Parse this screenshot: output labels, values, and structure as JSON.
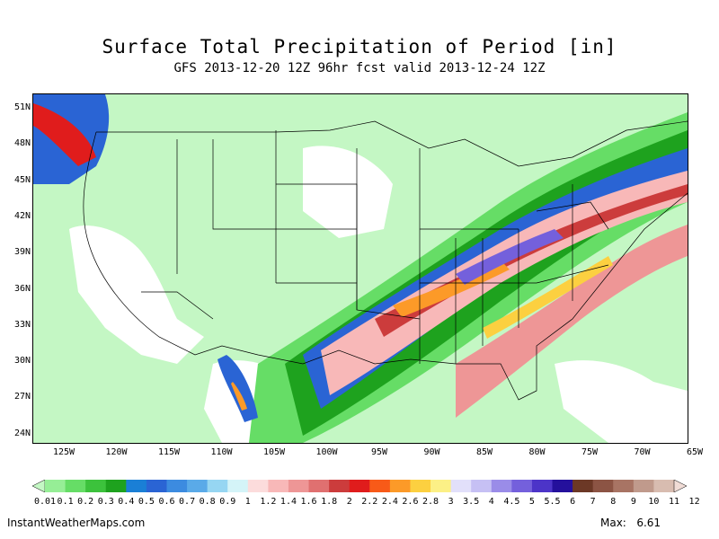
{
  "title": "Surface Total Precipitation of Period [in]",
  "subtitle": "GFS 2013-12-20 12Z 96hr fcst valid 2013-12-24 12Z",
  "lat_labels": [
    "51N",
    "48N",
    "45N",
    "42N",
    "39N",
    "36N",
    "33N",
    "30N",
    "27N",
    "24N"
  ],
  "lon_labels": [
    "125W",
    "120W",
    "115W",
    "110W",
    "105W",
    "100W",
    "95W",
    "90W",
    "85W",
    "80W",
    "75W",
    "70W",
    "65W"
  ],
  "colorbar": {
    "labels": [
      "0.01",
      "0.1",
      "0.2",
      "0.3",
      "0.4",
      "0.5",
      "0.6",
      "0.7",
      "0.8",
      "0.9",
      "1",
      "1.2",
      "1.4",
      "1.6",
      "1.8",
      "2",
      "2.2",
      "2.4",
      "2.6",
      "2.8",
      "3",
      "3.5",
      "4",
      "4.5",
      "5",
      "5.5",
      "6",
      "7",
      "8",
      "9",
      "10",
      "11",
      "12"
    ],
    "colors": [
      "#c4f7c4",
      "#96ee96",
      "#66dd66",
      "#3cc23c",
      "#1ea21e",
      "#1a7fd6",
      "#2a64d4",
      "#3c8be0",
      "#5aaae8",
      "#96d6f2",
      "#d4f4f8",
      "#fcdcdc",
      "#f8b8b8",
      "#ee9696",
      "#e07070",
      "#cc3c3c",
      "#e01c1c",
      "#f85a18",
      "#fc9a28",
      "#fcd040",
      "#fcf086",
      "#e2e0fa",
      "#c6c0f4",
      "#9a8ce8",
      "#7460dc",
      "#4c34c8",
      "#24109c",
      "#6c3826",
      "#8c5444",
      "#a87464",
      "#c09a8c",
      "#d8bcb0",
      "#f0dcd6"
    ]
  },
  "footer": {
    "site": "InstantWeatherMaps.com",
    "max_label": "Max:",
    "max_value": "6.61"
  }
}
